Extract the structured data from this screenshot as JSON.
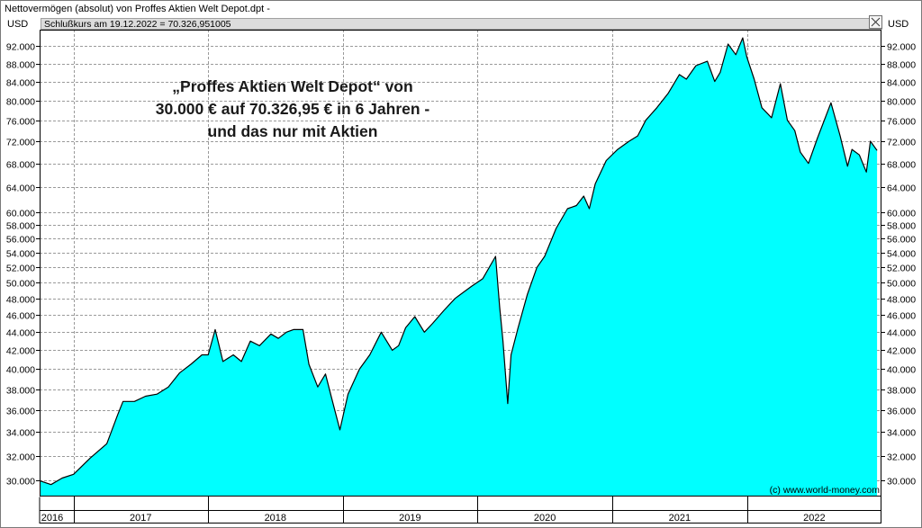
{
  "window": {
    "title": "Nettovermögen (absolut) von Proffes Aktien Welt Depot.dpt -"
  },
  "info_bar": {
    "text": "Schlußkurs am 19.12.2022 = 70.326,951005"
  },
  "close_icon": "close-x-icon",
  "colors": {
    "area_fill": "#00ffff",
    "line": "#000000",
    "grid": "#9a9a9a",
    "background": "#ffffff",
    "info_bar": "#dcdcdc"
  },
  "chart_data": {
    "type": "area",
    "title": "",
    "ylabel_left": "USD",
    "ylabel_right": "USD",
    "copyright": "(c) www.world-money.com",
    "annotation": [
      "„Proffes Aktien Welt Depot“ von",
      "30.000 € auf 70.326,95 € in 6 Jahren -",
      "und das nur mit Aktien"
    ],
    "y_scale": "log",
    "ylim": [
      28800,
      96000
    ],
    "yticks": [
      30000,
      32000,
      34000,
      36000,
      38000,
      40000,
      42000,
      44000,
      46000,
      48000,
      50000,
      52000,
      54000,
      56000,
      58000,
      60000,
      64000,
      68000,
      72000,
      76000,
      80000,
      84000,
      88000,
      92000
    ],
    "ytick_labels": [
      "30.000",
      "32.000",
      "34.000",
      "36.000",
      "38.000",
      "40.000",
      "42.000",
      "44.000",
      "46.000",
      "48.000",
      "50.000",
      "52.000",
      "54.000",
      "56.000",
      "58.000",
      "60.000",
      "64.000",
      "68.000",
      "72.000",
      "76.000",
      "80.000",
      "84.000",
      "88.000",
      "92.000"
    ],
    "xlim": [
      "2016-10-01",
      "2022-12-31"
    ],
    "years": [
      {
        "label": "2016",
        "start": "2016-10-01",
        "end": "2016-12-31"
      },
      {
        "label": "2017",
        "start": "2017-01-01",
        "end": "2017-12-31"
      },
      {
        "label": "2018",
        "start": "2018-01-01",
        "end": "2018-12-31"
      },
      {
        "label": "2019",
        "start": "2019-01-01",
        "end": "2019-12-31"
      },
      {
        "label": "2020",
        "start": "2020-01-01",
        "end": "2020-12-31"
      },
      {
        "label": "2021",
        "start": "2021-01-01",
        "end": "2021-12-31"
      },
      {
        "label": "2022",
        "start": "2022-01-01",
        "end": "2022-12-31"
      }
    ],
    "grid": true,
    "series": [
      {
        "x": [
          "2016-10-01",
          "2016-11-01",
          "2016-12-01",
          "2017-01-01",
          "2017-02-15",
          "2017-04-01",
          "2017-05-01",
          "2017-05-15",
          "2017-06-15",
          "2017-07-15",
          "2017-08-15",
          "2017-09-15",
          "2017-10-15",
          "2017-11-15",
          "2017-12-15",
          "2018-01-01",
          "2018-01-20",
          "2018-02-10",
          "2018-03-10",
          "2018-04-01",
          "2018-04-25",
          "2018-05-20",
          "2018-06-20",
          "2018-07-10",
          "2018-08-01",
          "2018-08-20",
          "2018-09-15",
          "2018-10-01",
          "2018-10-25",
          "2018-11-15",
          "2018-12-01",
          "2018-12-24",
          "2019-01-15",
          "2019-02-15",
          "2019-03-15",
          "2019-04-15",
          "2019-05-15",
          "2019-06-01",
          "2019-06-20",
          "2019-07-15",
          "2019-08-10",
          "2019-09-01",
          "2019-10-01",
          "2019-11-01",
          "2019-12-15",
          "2020-01-15",
          "2020-02-19",
          "2020-03-01",
          "2020-03-10",
          "2020-03-23",
          "2020-04-01",
          "2020-04-20",
          "2020-05-15",
          "2020-06-10",
          "2020-07-01",
          "2020-08-01",
          "2020-09-01",
          "2020-09-25",
          "2020-10-15",
          "2020-10-30",
          "2020-11-15",
          "2020-12-15",
          "2021-01-15",
          "2021-02-15",
          "2021-03-10",
          "2021-04-01",
          "2021-05-01",
          "2021-06-01",
          "2021-07-01",
          "2021-07-20",
          "2021-08-15",
          "2021-09-15",
          "2021-10-05",
          "2021-10-20",
          "2021-11-10",
          "2021-12-01",
          "2021-12-20",
          "2021-12-31",
          "2022-01-20",
          "2022-02-10",
          "2022-03-08",
          "2022-04-01",
          "2022-04-20",
          "2022-05-10",
          "2022-05-25",
          "2022-06-16",
          "2022-07-10",
          "2022-08-16",
          "2022-09-10",
          "2022-09-30",
          "2022-10-12",
          "2022-11-01",
          "2022-11-20",
          "2022-12-01",
          "2022-12-19"
        ],
        "y": [
          30000,
          29700,
          30200,
          30500,
          31800,
          33000,
          35600,
          36800,
          36800,
          37300,
          37500,
          38200,
          39600,
          40500,
          41500,
          41500,
          44300,
          40800,
          41500,
          40800,
          43000,
          42500,
          43800,
          43300,
          44000,
          44300,
          44300,
          40500,
          38200,
          39500,
          37200,
          34200,
          37500,
          40000,
          41500,
          44000,
          42000,
          42500,
          44500,
          45800,
          44000,
          45000,
          46500,
          48000,
          49500,
          50500,
          53500,
          47000,
          43000,
          36600,
          41500,
          44500,
          48500,
          52000,
          53500,
          57500,
          60500,
          61000,
          62500,
          60500,
          64500,
          68500,
          70500,
          72000,
          73000,
          76000,
          78500,
          81500,
          85500,
          84500,
          87500,
          88500,
          84000,
          86000,
          92500,
          90000,
          94000,
          89500,
          84500,
          78500,
          76500,
          83500,
          76000,
          74000,
          70000,
          68000,
          72500,
          79500,
          73000,
          67500,
          70500,
          69500,
          66500,
          72000,
          70300
        ]
      }
    ]
  }
}
